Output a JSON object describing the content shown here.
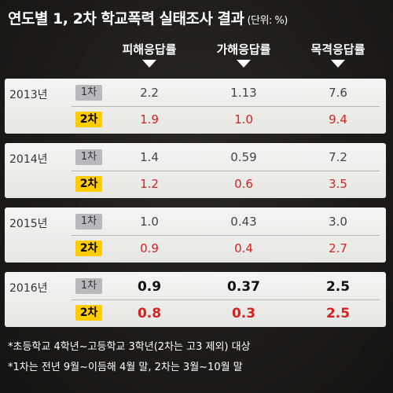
{
  "title": "연도별 1, 2차 학교폭력 실태조사 결과",
  "unit": "(단위: %)",
  "chart_data": {
    "type": "table",
    "title": "연도별 1, 2차 학교폭력 실태조사 결과",
    "unit": "(단위: %)",
    "columns": [
      "피해응답률",
      "가해응답률",
      "목격응답률"
    ],
    "rows": [
      {
        "year": "2013년",
        "first_label": "1차",
        "second_label": "2차",
        "first": [
          "2.2",
          "1.13",
          "7.6"
        ],
        "second": [
          "1.9",
          "1.0",
          "9.4"
        ]
      },
      {
        "year": "2014년",
        "first_label": "1차",
        "second_label": "2차",
        "first": [
          "1.4",
          "0.59",
          "7.2"
        ],
        "second": [
          "1.2",
          "0.6",
          "3.5"
        ]
      },
      {
        "year": "2015년",
        "first_label": "1차",
        "second_label": "2차",
        "first": [
          "1.0",
          "0.43",
          "3.0"
        ],
        "second": [
          "0.9",
          "0.4",
          "2.7"
        ]
      },
      {
        "year": "2016년",
        "first_label": "1차",
        "second_label": "2차",
        "first": [
          "0.9",
          "0.37",
          "2.5"
        ],
        "second": [
          "0.8",
          "0.3",
          "2.5"
        ]
      }
    ]
  },
  "notes": [
    "*초등학교 4학년~고등학교 3학년(2차는 고3 제외) 대상",
    "*1차는 전년 9월~이듬해 4월 말, 2차는 3월~10월 말"
  ],
  "colors": {
    "first_badge": "#b7b9bc",
    "second_badge": "#ffcc00",
    "second_value": "#d4231f"
  }
}
